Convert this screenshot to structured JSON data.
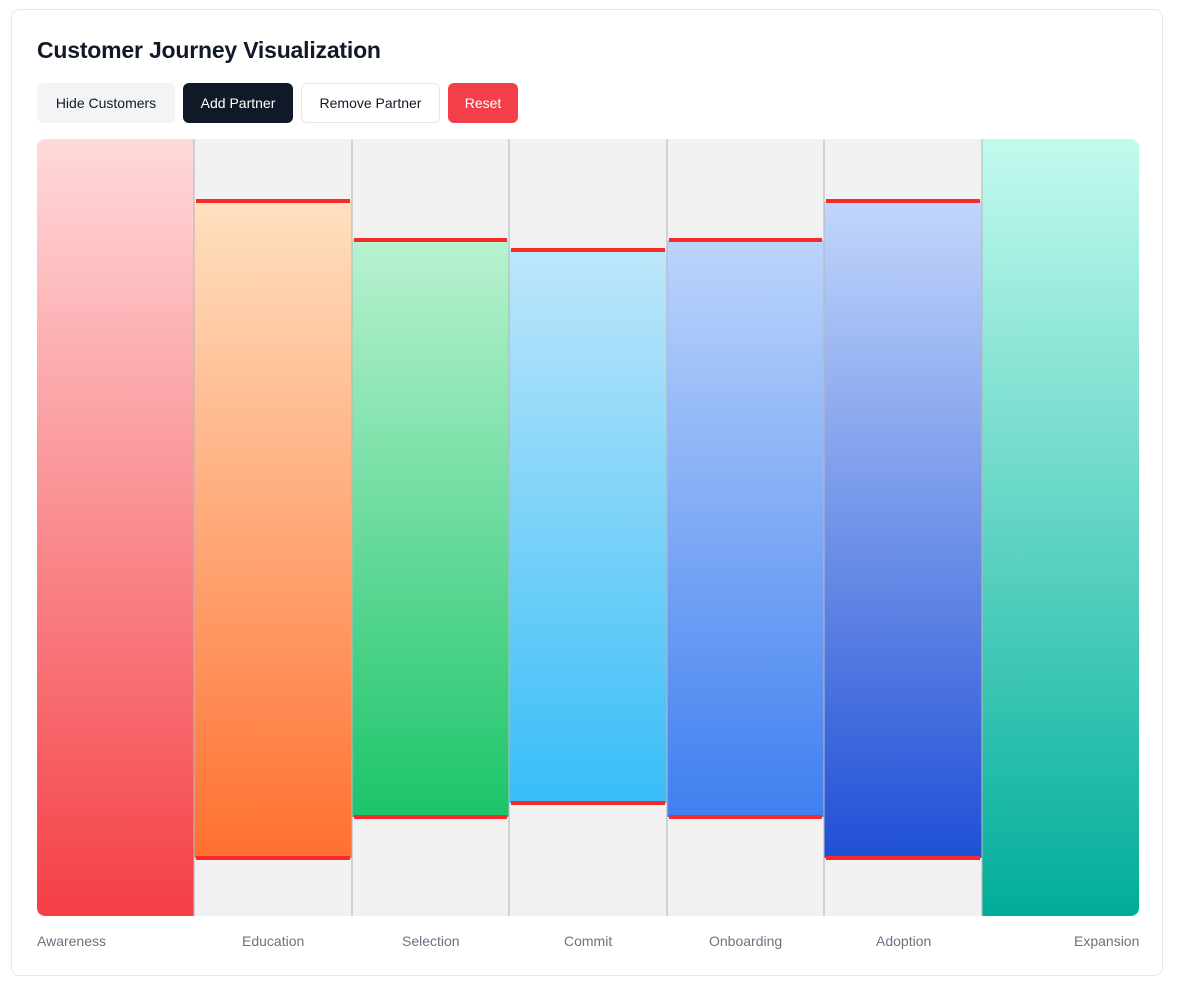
{
  "title": "Customer Journey Visualization",
  "toolbar": {
    "hide_customers": "Hide Customers",
    "add_partner": "Add Partner",
    "remove_partner": "Remove Partner",
    "reset": "Reset"
  },
  "colors": {
    "background_panel": "#f1f1f1",
    "threshold_line": "#f72a2a",
    "reset_button": "#f43f4a",
    "dark_button": "#111827"
  },
  "stages": [
    {
      "name": "Awareness",
      "color_top": "#ffd9da",
      "color_bottom": "#f43f45",
      "top_fraction": 0.0,
      "bottom_fraction": 1.0
    },
    {
      "name": "Education",
      "color_top": "#ffe0c0",
      "color_bottom": "#ff7030",
      "top_fraction": 0.08,
      "bottom_fraction": 0.925
    },
    {
      "name": "Selection",
      "color_top": "#b8f2cf",
      "color_bottom": "#1cc46a",
      "top_fraction": 0.13,
      "bottom_fraction": 0.873
    },
    {
      "name": "Commit",
      "color_top": "#bde6fa",
      "color_bottom": "#38bdf8",
      "top_fraction": 0.143,
      "bottom_fraction": 0.855
    },
    {
      "name": "Onboarding",
      "color_top": "#bcd4fb",
      "color_bottom": "#3f7ff0",
      "top_fraction": 0.13,
      "bottom_fraction": 0.873
    },
    {
      "name": "Adoption",
      "color_top": "#c2d6fb",
      "color_bottom": "#1f4fd6",
      "top_fraction": 0.08,
      "bottom_fraction": 0.925
    },
    {
      "name": "Expansion",
      "color_top": "#c2fbee",
      "color_bottom": "#00ad9a",
      "top_fraction": 0.0,
      "bottom_fraction": 1.0
    }
  ]
}
